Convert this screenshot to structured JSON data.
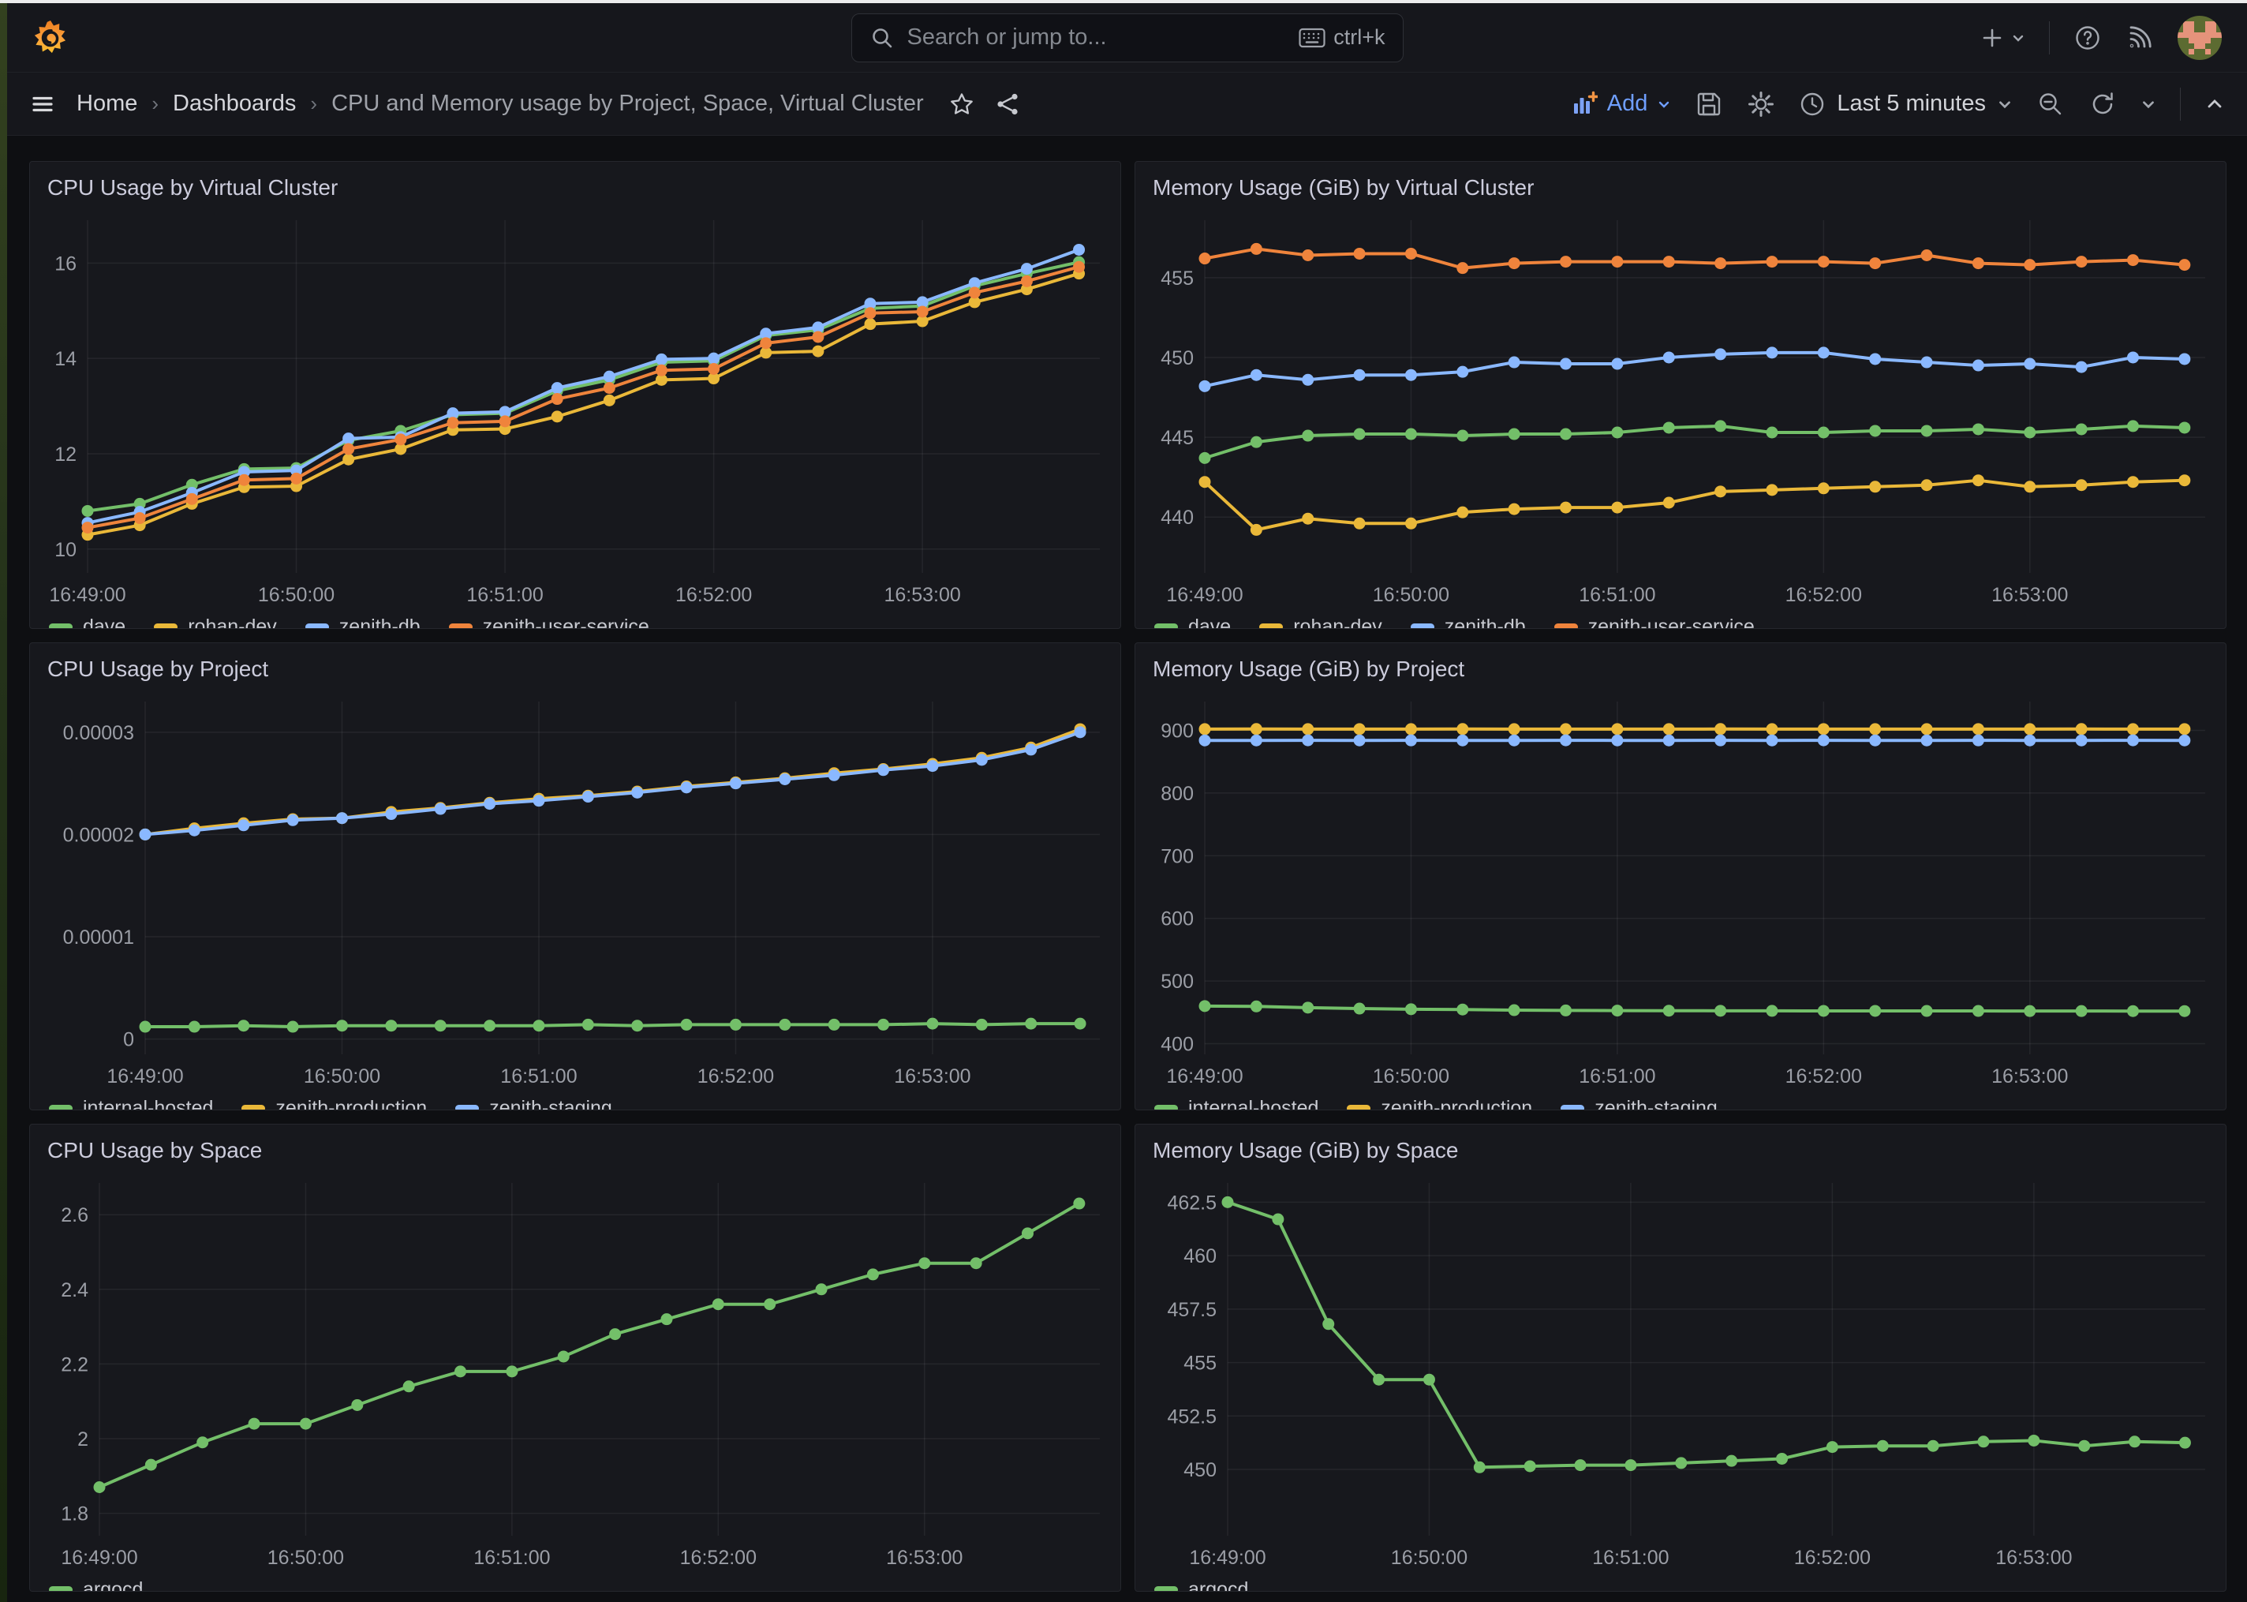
{
  "topbar": {
    "search": {
      "placeholder": "Search or jump to...",
      "shortcut": "ctrl+k"
    },
    "icons": [
      "grafana-logo",
      "search-icon",
      "keyboard-icon",
      "plus-icon",
      "chevron-down-icon",
      "help-icon",
      "rss-icon",
      "avatar"
    ]
  },
  "toolbar": {
    "breadcrumb": [
      {
        "label": "Home"
      },
      {
        "label": "Dashboards"
      },
      {
        "label": "CPU and Memory usage by Project, Space, Virtual Cluster"
      }
    ],
    "add_label": "Add",
    "time_range": "Last 5 minutes",
    "icons": [
      "menu-icon",
      "star-icon",
      "share-icon",
      "add-panel-icon",
      "save-icon",
      "gear-icon",
      "clock-icon",
      "zoom-out-icon",
      "refresh-icon",
      "chevron-down-icon",
      "chevron-up-icon"
    ]
  },
  "colors": {
    "green": "#73bf69",
    "yellow": "#eab839",
    "blue": "#8ab8ff",
    "orange": "#ef843c",
    "link_blue": "#6f9fff",
    "panel_bg": "#17181d",
    "page_bg": "#0e0f12",
    "grid": "rgba(204,204,220,0.08)",
    "axis_text": "#9b9ea6"
  },
  "chart_data": [
    {
      "type": "line",
      "title": "CPU Usage by Virtual Cluster",
      "x_start": "16:49:00",
      "point_interval_s": 15,
      "xlim_s": [
        0,
        291
      ],
      "xticks": [
        {
          "s": 0,
          "label": "16:49:00"
        },
        {
          "s": 60,
          "label": "16:50:00"
        },
        {
          "s": 120,
          "label": "16:51:00"
        },
        {
          "s": 180,
          "label": "16:52:00"
        },
        {
          "s": 240,
          "label": "16:53:00"
        }
      ],
      "ylim": [
        9.5,
        16.9
      ],
      "yticks": [
        {
          "v": 10,
          "label": "10"
        },
        {
          "v": 12,
          "label": "12"
        },
        {
          "v": 14,
          "label": "14"
        },
        {
          "v": 16,
          "label": "16"
        }
      ],
      "legend_position": "bottom",
      "grid": true,
      "series": [
        {
          "name": "dave",
          "color": "#73bf69",
          "values": [
            10.8,
            10.95,
            11.35,
            11.68,
            11.7,
            12.28,
            12.48,
            12.82,
            12.85,
            13.32,
            13.55,
            13.92,
            13.95,
            14.48,
            14.6,
            15.05,
            15.1,
            15.52,
            15.78,
            16.02
          ]
        },
        {
          "name": "rohan-dev",
          "color": "#eab839",
          "values": [
            10.3,
            10.5,
            10.95,
            11.3,
            11.32,
            11.88,
            12.1,
            12.5,
            12.52,
            12.78,
            13.12,
            13.55,
            13.58,
            14.12,
            14.15,
            14.72,
            14.78,
            15.18,
            15.45,
            15.78
          ]
        },
        {
          "name": "zenith-db",
          "color": "#8ab8ff",
          "values": [
            10.55,
            10.78,
            11.18,
            11.62,
            11.65,
            12.32,
            12.35,
            12.85,
            12.88,
            13.38,
            13.62,
            13.98,
            14.0,
            14.52,
            14.65,
            15.15,
            15.18,
            15.58,
            15.88,
            16.28
          ]
        },
        {
          "name": "zenith-user-service",
          "color": "#ef843c",
          "values": [
            10.45,
            10.65,
            11.05,
            11.45,
            11.48,
            12.1,
            12.3,
            12.65,
            12.68,
            13.15,
            13.38,
            13.75,
            13.78,
            14.32,
            14.45,
            14.95,
            14.98,
            15.38,
            15.62,
            15.92
          ]
        }
      ]
    },
    {
      "type": "line",
      "title": "Memory Usage (GiB) by Virtual Cluster",
      "x_start": "16:49:00",
      "point_interval_s": 15,
      "xlim_s": [
        0,
        291
      ],
      "xticks": [
        {
          "s": 0,
          "label": "16:49:00"
        },
        {
          "s": 60,
          "label": "16:50:00"
        },
        {
          "s": 120,
          "label": "16:51:00"
        },
        {
          "s": 180,
          "label": "16:52:00"
        },
        {
          "s": 240,
          "label": "16:53:00"
        }
      ],
      "ylim": [
        436.5,
        458.6
      ],
      "yticks": [
        {
          "v": 440,
          "label": "440"
        },
        {
          "v": 445,
          "label": "445"
        },
        {
          "v": 450,
          "label": "450"
        },
        {
          "v": 455,
          "label": "455"
        }
      ],
      "legend_position": "bottom",
      "grid": true,
      "series": [
        {
          "name": "dave",
          "color": "#73bf69",
          "values": [
            443.7,
            444.7,
            445.1,
            445.2,
            445.2,
            445.1,
            445.2,
            445.2,
            445.3,
            445.6,
            445.7,
            445.3,
            445.3,
            445.4,
            445.4,
            445.5,
            445.3,
            445.5,
            445.7,
            445.6
          ]
        },
        {
          "name": "rohan-dev",
          "color": "#eab839",
          "values": [
            442.2,
            439.2,
            439.9,
            439.6,
            439.6,
            440.3,
            440.5,
            440.6,
            440.6,
            440.9,
            441.6,
            441.7,
            441.8,
            441.9,
            442.0,
            442.3,
            441.9,
            442.0,
            442.2,
            442.3
          ]
        },
        {
          "name": "zenith-db",
          "color": "#8ab8ff",
          "values": [
            448.2,
            448.9,
            448.6,
            448.9,
            448.9,
            449.1,
            449.7,
            449.6,
            449.6,
            450.0,
            450.2,
            450.3,
            450.3,
            449.9,
            449.7,
            449.5,
            449.6,
            449.4,
            450.0,
            449.9
          ]
        },
        {
          "name": "zenith-user-service",
          "color": "#ef843c",
          "values": [
            456.2,
            456.8,
            456.4,
            456.5,
            456.5,
            455.6,
            455.9,
            456.0,
            456.0,
            456.0,
            455.9,
            456.0,
            456.0,
            455.9,
            456.4,
            455.9,
            455.8,
            456.0,
            456.1,
            455.8
          ]
        }
      ]
    },
    {
      "type": "line",
      "title": "CPU Usage by Project",
      "x_start": "16:49:00",
      "point_interval_s": 15,
      "xlim_s": [
        0,
        291
      ],
      "xticks": [
        {
          "s": 0,
          "label": "16:49:00"
        },
        {
          "s": 60,
          "label": "16:50:00"
        },
        {
          "s": 120,
          "label": "16:51:00"
        },
        {
          "s": 180,
          "label": "16:52:00"
        },
        {
          "s": 240,
          "label": "16:53:00"
        }
      ],
      "ylim": [
        -1.5e-06,
        3.3e-05
      ],
      "yticks": [
        {
          "v": 0,
          "label": "0"
        },
        {
          "v": 1e-05,
          "label": "0.00001"
        },
        {
          "v": 2e-05,
          "label": "0.00002"
        },
        {
          "v": 3e-05,
          "label": "0.00003"
        }
      ],
      "legend_position": "bottom",
      "grid": true,
      "series": [
        {
          "name": "internal-hosted",
          "color": "#73bf69",
          "values": [
            1.2e-06,
            1.2e-06,
            1.3e-06,
            1.2e-06,
            1.3e-06,
            1.3e-06,
            1.3e-06,
            1.3e-06,
            1.3e-06,
            1.4e-06,
            1.3e-06,
            1.4e-06,
            1.4e-06,
            1.4e-06,
            1.4e-06,
            1.4e-06,
            1.5e-06,
            1.4e-06,
            1.5e-06,
            1.5e-06
          ]
        },
        {
          "name": "zenith-production",
          "color": "#eab839",
          "values": [
            2e-05,
            2.06e-05,
            2.11e-05,
            2.15e-05,
            2.16e-05,
            2.22e-05,
            2.26e-05,
            2.31e-05,
            2.35e-05,
            2.38e-05,
            2.42e-05,
            2.47e-05,
            2.51e-05,
            2.55e-05,
            2.6e-05,
            2.64e-05,
            2.69e-05,
            2.75e-05,
            2.85e-05,
            3.03e-05
          ]
        },
        {
          "name": "zenith-staging",
          "color": "#8ab8ff",
          "values": [
            2e-05,
            2.04e-05,
            2.09e-05,
            2.14e-05,
            2.16e-05,
            2.2e-05,
            2.25e-05,
            2.3e-05,
            2.33e-05,
            2.37e-05,
            2.41e-05,
            2.46e-05,
            2.5e-05,
            2.54e-05,
            2.58e-05,
            2.63e-05,
            2.67e-05,
            2.73e-05,
            2.83e-05,
            3e-05
          ]
        }
      ]
    },
    {
      "type": "line",
      "title": "Memory Usage (GiB) by Project",
      "x_start": "16:49:00",
      "point_interval_s": 15,
      "xlim_s": [
        0,
        291
      ],
      "xticks": [
        {
          "s": 0,
          "label": "16:49:00"
        },
        {
          "s": 60,
          "label": "16:50:00"
        },
        {
          "s": 120,
          "label": "16:51:00"
        },
        {
          "s": 180,
          "label": "16:52:00"
        },
        {
          "s": 240,
          "label": "16:53:00"
        }
      ],
      "ylim": [
        383,
        946
      ],
      "yticks": [
        {
          "v": 400,
          "label": "400"
        },
        {
          "v": 500,
          "label": "500"
        },
        {
          "v": 600,
          "label": "600"
        },
        {
          "v": 700,
          "label": "700"
        },
        {
          "v": 800,
          "label": "800"
        },
        {
          "v": 900,
          "label": "900"
        }
      ],
      "legend_position": "bottom",
      "grid": true,
      "series": [
        {
          "name": "internal-hosted",
          "color": "#73bf69",
          "values": [
            460,
            459.5,
            457.5,
            456,
            455,
            454.5,
            453.5,
            453,
            452.8,
            452.6,
            452.5,
            452.4,
            452.3,
            452.3,
            452.2,
            452.2,
            452.1,
            452.1,
            452.0,
            452.0
          ]
        },
        {
          "name": "zenith-production",
          "color": "#eab839",
          "values": [
            902,
            902.2,
            902,
            902.1,
            902,
            902.2,
            902,
            902,
            902.1,
            902,
            902.2,
            902,
            902.1,
            902,
            902,
            902.1,
            902,
            902.2,
            902,
            902.1
          ]
        },
        {
          "name": "zenith-staging",
          "color": "#8ab8ff",
          "values": [
            884,
            884,
            884.2,
            884,
            884.1,
            884,
            884,
            884.2,
            884,
            884,
            884.1,
            884,
            884.2,
            884,
            884,
            884.1,
            884,
            884,
            884.2,
            884
          ]
        }
      ]
    },
    {
      "type": "line",
      "title": "CPU Usage by Space",
      "x_start": "16:49:00",
      "point_interval_s": 15,
      "xlim_s": [
        0,
        291
      ],
      "xticks": [
        {
          "s": 0,
          "label": "16:49:00"
        },
        {
          "s": 60,
          "label": "16:50:00"
        },
        {
          "s": 120,
          "label": "16:51:00"
        },
        {
          "s": 180,
          "label": "16:52:00"
        },
        {
          "s": 240,
          "label": "16:53:00"
        }
      ],
      "ylim": [
        1.74,
        2.685
      ],
      "yticks": [
        {
          "v": 1.8,
          "label": "1.8"
        },
        {
          "v": 2,
          "label": "2"
        },
        {
          "v": 2.2,
          "label": "2.2"
        },
        {
          "v": 2.4,
          "label": "2.4"
        },
        {
          "v": 2.6,
          "label": "2.6"
        }
      ],
      "legend_position": "bottom",
      "grid": true,
      "series": [
        {
          "name": "argocd",
          "color": "#73bf69",
          "values": [
            1.87,
            1.93,
            1.99,
            2.04,
            2.04,
            2.09,
            2.14,
            2.18,
            2.18,
            2.22,
            2.28,
            2.32,
            2.36,
            2.36,
            2.4,
            2.44,
            2.47,
            2.47,
            2.55,
            2.63
          ]
        }
      ]
    },
    {
      "type": "line",
      "title": "Memory Usage (GiB) by Space",
      "x_start": "16:49:00",
      "point_interval_s": 15,
      "xlim_s": [
        0,
        291
      ],
      "xticks": [
        {
          "s": 0,
          "label": "16:49:00"
        },
        {
          "s": 60,
          "label": "16:50:00"
        },
        {
          "s": 120,
          "label": "16:51:00"
        },
        {
          "s": 180,
          "label": "16:52:00"
        },
        {
          "s": 240,
          "label": "16:53:00"
        }
      ],
      "ylim": [
        446.9,
        463.4
      ],
      "yticks": [
        {
          "v": 450,
          "label": "450"
        },
        {
          "v": 452.5,
          "label": "452.5"
        },
        {
          "v": 455,
          "label": "455"
        },
        {
          "v": 457.5,
          "label": "457.5"
        },
        {
          "v": 460,
          "label": "460"
        },
        {
          "v": 462.5,
          "label": "462.5"
        }
      ],
      "legend_position": "bottom",
      "grid": true,
      "series": [
        {
          "name": "argocd",
          "color": "#73bf69",
          "values": [
            462.5,
            461.7,
            456.8,
            454.2,
            454.2,
            450.1,
            450.15,
            450.2,
            450.2,
            450.3,
            450.4,
            450.5,
            451.05,
            451.1,
            451.1,
            451.3,
            451.35,
            451.1,
            451.3,
            451.25
          ]
        }
      ]
    }
  ]
}
